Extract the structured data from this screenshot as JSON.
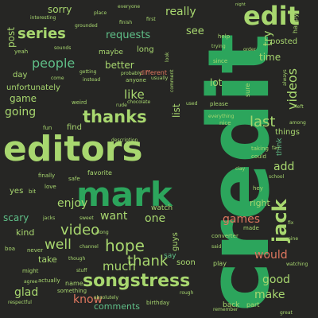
{
  "palette": {
    "background": "#262624",
    "bright_green": "#2ca55c",
    "lime": "#a8d76f",
    "light_green": "#9fd88f",
    "mint": "#5fbf88",
    "salmon": "#e0775f",
    "orange": "#d98a52",
    "tan": "#c8a57f",
    "grey": "#8a8f86",
    "olive": "#a9b27a"
  },
  "words": [
    {
      "text": "credit",
      "color": "#2ca55c"
    },
    {
      "text": "editors",
      "color": "#a8d76f"
    },
    {
      "text": "mark",
      "color": "#2ca55c"
    },
    {
      "text": "edit",
      "color": "#a8d76f"
    },
    {
      "text": "jack",
      "color": "#a8d76f"
    },
    {
      "text": "songstress",
      "color": "#a8d76f"
    },
    {
      "text": "thanks",
      "color": "#a8d76f"
    },
    {
      "text": "series",
      "color": "#a8d76f"
    },
    {
      "text": "people",
      "color": "#5fbf88"
    },
    {
      "text": "last",
      "color": "#a8d76f"
    },
    {
      "text": "hope",
      "color": "#a8d76f"
    },
    {
      "text": "thank",
      "color": "#a8d76f"
    },
    {
      "text": "video",
      "color": "#a8d76f"
    },
    {
      "text": "well",
      "color": "#a8d76f"
    },
    {
      "text": "videos",
      "color": "#a8d76f"
    },
    {
      "text": "really",
      "color": "#a8d76f"
    },
    {
      "text": "requests",
      "color": "#5fbf88"
    },
    {
      "text": "going",
      "color": "#a8d76f"
    },
    {
      "text": "like",
      "color": "#a8d76f"
    },
    {
      "text": "much",
      "color": "#a8d76f"
    },
    {
      "text": "would",
      "color": "#e0775f"
    },
    {
      "text": "good",
      "color": "#a8d76f"
    },
    {
      "text": "make",
      "color": "#a8d76f"
    },
    {
      "text": "know",
      "color": "#e0775f"
    },
    {
      "text": "glad",
      "color": "#a8d76f"
    },
    {
      "text": "games",
      "color": "#e0775f"
    },
    {
      "text": "enjoy",
      "color": "#a8d76f"
    },
    {
      "text": "want",
      "color": "#a8d76f"
    },
    {
      "text": "one",
      "color": "#a8d76f"
    },
    {
      "text": "add",
      "color": "#a8d76f"
    },
    {
      "text": "try",
      "color": "#a8d76f"
    },
    {
      "text": "see",
      "color": "#a8d76f"
    },
    {
      "text": "post",
      "color": "#a8d76f"
    },
    {
      "text": "game",
      "color": "#a8d76f"
    },
    {
      "text": "time",
      "color": "#a8d76f"
    },
    {
      "text": "list",
      "color": "#a8d76f"
    },
    {
      "text": "lot",
      "color": "#a8d76f"
    },
    {
      "text": "better",
      "color": "#a8d76f"
    },
    {
      "text": "sorry",
      "color": "#a8d76f"
    },
    {
      "text": "posted",
      "color": "#a8d76f"
    },
    {
      "text": "scary",
      "color": "#5fbf88"
    },
    {
      "text": "kind",
      "color": "#a8d76f"
    },
    {
      "text": "right",
      "color": "#a8d76f"
    },
    {
      "text": "take",
      "color": "#a8d76f"
    },
    {
      "text": "comments",
      "color": "#5fbf88"
    },
    {
      "text": "unfortunately",
      "color": "#a8d76f"
    },
    {
      "text": "day",
      "color": "#a8d76f"
    },
    {
      "text": "things",
      "color": "#a8d76f"
    },
    {
      "text": "guys",
      "color": "#a8d76f"
    },
    {
      "text": "think",
      "color": "#5fbf88"
    },
    {
      "text": "long",
      "color": "#a8d76f"
    },
    {
      "text": "maybe",
      "color": "#a8d76f"
    },
    {
      "text": "find",
      "color": "#a8d76f"
    },
    {
      "text": "yes",
      "color": "#a8d76f"
    },
    {
      "text": "say",
      "color": "#5fbf88"
    },
    {
      "text": "soon",
      "color": "#a8d76f"
    },
    {
      "text": "watch",
      "color": "#a8d76f"
    },
    {
      "text": "happy",
      "color": "#a8d76f"
    },
    {
      "text": "help",
      "color": "#a8d76f"
    },
    {
      "text": "favorite",
      "color": "#a8d76f"
    },
    {
      "text": "different",
      "color": "#e0775f"
    },
    {
      "text": "play",
      "color": "#a8d76f"
    },
    {
      "text": "back",
      "color": "#a8d76f"
    },
    {
      "text": "part",
      "color": "#a8d76f"
    },
    {
      "text": "first",
      "color": "#a8d76f"
    },
    {
      "text": "place",
      "color": "#a8d76f"
    },
    {
      "text": "interesting",
      "color": "#a8d76f"
    },
    {
      "text": "everyone",
      "color": "#a8d76f"
    },
    {
      "text": "finish",
      "color": "#a8d76f"
    },
    {
      "text": "sounds",
      "color": "#a8d76f"
    },
    {
      "text": "grounded",
      "color": "#a8d76f"
    },
    {
      "text": "please",
      "color": "#a8d76f"
    },
    {
      "text": "since",
      "color": "#a8d76f"
    },
    {
      "text": "trying",
      "color": "#a8d76f"
    },
    {
      "text": "sure",
      "color": "#a8d76f"
    },
    {
      "text": "anyone",
      "color": "#a8d76f"
    },
    {
      "text": "usually",
      "color": "#a8d76f"
    },
    {
      "text": "getting",
      "color": "#a8d76f"
    },
    {
      "text": "come",
      "color": "#a8d76f"
    },
    {
      "text": "probably",
      "color": "#a8d76f"
    },
    {
      "text": "instead",
      "color": "#a8d76f"
    },
    {
      "text": "weird",
      "color": "#a8d76f"
    },
    {
      "text": "rude",
      "color": "#a8d76f"
    },
    {
      "text": "look",
      "color": "#a8d76f"
    },
    {
      "text": "used",
      "color": "#a8d76f"
    },
    {
      "text": "everything",
      "color": "#a8d76f"
    },
    {
      "text": "nice",
      "color": "#a8d76f"
    },
    {
      "text": "taking",
      "color": "#a8d76f"
    },
    {
      "text": "could",
      "color": "#a8d76f"
    },
    {
      "text": "clay",
      "color": "#a8d76f"
    },
    {
      "text": "school",
      "color": "#a8d76f"
    },
    {
      "text": "converter",
      "color": "#a8d76f"
    },
    {
      "text": "made",
      "color": "#a8d76f"
    },
    {
      "text": "fix",
      "color": "#a8d76f"
    },
    {
      "text": "watching",
      "color": "#a8d76f"
    },
    {
      "text": "along",
      "color": "#a8d76f"
    },
    {
      "text": "chocolate",
      "color": "#a8d76f"
    },
    {
      "text": "description",
      "color": "#a8d76f"
    },
    {
      "text": "sweet",
      "color": "#a8d76f"
    },
    {
      "text": "jacks",
      "color": "#a8d76f"
    },
    {
      "text": "love",
      "color": "#a8d76f"
    },
    {
      "text": "finally",
      "color": "#a8d76f"
    },
    {
      "text": "safe",
      "color": "#a8d76f"
    },
    {
      "text": "fun",
      "color": "#a8d76f"
    },
    {
      "text": "yeah",
      "color": "#a8d76f"
    },
    {
      "text": "mine",
      "color": "#a8d76f"
    },
    {
      "text": "boa",
      "color": "#a8d76f"
    },
    {
      "text": "never",
      "color": "#a8d76f"
    },
    {
      "text": "channel",
      "color": "#a8d76f"
    },
    {
      "text": "though",
      "color": "#a8d76f"
    },
    {
      "text": "might",
      "color": "#a8d76f"
    },
    {
      "text": "actually",
      "color": "#a8d76f"
    },
    {
      "text": "name",
      "color": "#a8d76f"
    },
    {
      "text": "something",
      "color": "#a8d76f"
    },
    {
      "text": "agree",
      "color": "#a8d76f"
    },
    {
      "text": "respectful",
      "color": "#a8d76f"
    },
    {
      "text": "absolutely",
      "color": "#a8d76f"
    },
    {
      "text": "birthday",
      "color": "#a8d76f"
    },
    {
      "text": "rough",
      "color": "#a8d76f"
    },
    {
      "text": "remember",
      "color": "#a8d76f"
    },
    {
      "text": "great",
      "color": "#a8d76f"
    },
    {
      "text": "bit",
      "color": "#a8d76f"
    },
    {
      "text": "comment",
      "color": "#a8d76f"
    },
    {
      "text": "always",
      "color": "#a8d76f"
    },
    {
      "text": "stuff",
      "color": "#a8d76f"
    },
    {
      "text": "left",
      "color": "#a8d76f"
    },
    {
      "text": "among",
      "color": "#a8d76f"
    },
    {
      "text": "order",
      "color": "#a8d76f"
    },
    {
      "text": "night",
      "color": "#a8d76f"
    },
    {
      "text": "fair",
      "color": "#a8d76f"
    },
    {
      "text": "hey",
      "color": "#a8d76f"
    },
    {
      "text": "said",
      "color": "#a8d76f"
    },
    {
      "text": "job",
      "color": "#a8d76f"
    },
    {
      "text": "honestly",
      "color": "#a8d76f"
    }
  ]
}
